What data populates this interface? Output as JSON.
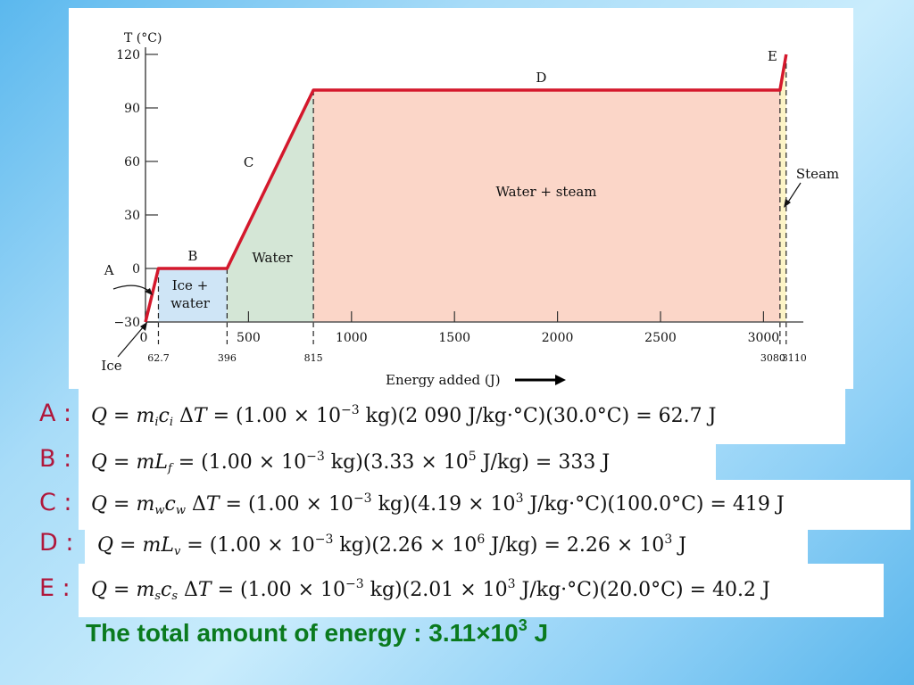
{
  "colors": {
    "curve": "#d4182c",
    "region_ice_water": "#cfe5f6",
    "region_water": "#d4e6d6",
    "region_water_steam": "#fbd6c8",
    "region_steam": "#fcf4c6",
    "equation_labels": "#b0173b",
    "total_text": "#0a7a1e"
  },
  "chart_data": {
    "type": "line",
    "ylabel": "T (°C)",
    "xlabel": "Energy added (J)",
    "ylim": [
      -30,
      120
    ],
    "xlim": [
      0,
      3150
    ],
    "y_ticks": [
      -30,
      0,
      30,
      60,
      90,
      120
    ],
    "x_ticks": [
      0,
      500,
      1000,
      1500,
      2000,
      2500,
      3000
    ],
    "series": [
      {
        "x": [
          0,
          62.7,
          396,
          815,
          3080,
          3110
        ],
        "y": [
          -30,
          0,
          0,
          100,
          100,
          120
        ]
      }
    ],
    "segment_labels": [
      {
        "label": "A",
        "x": 31,
        "y": -15
      },
      {
        "label": "B",
        "x": 229,
        "y": 0
      },
      {
        "label": "C",
        "x": 605,
        "y": 50
      },
      {
        "label": "D",
        "x": 1947,
        "y": 100
      },
      {
        "label": "E",
        "x": 3095,
        "y": 110
      }
    ],
    "region_labels": {
      "ice_water": [
        "Ice +",
        "water"
      ],
      "water": "Water",
      "water_steam": "Water + steam",
      "steam": "Steam",
      "ice": "Ice"
    },
    "marker_values": [
      "62.7",
      "396",
      "815",
      "3080",
      "3110"
    ],
    "grid": false
  },
  "equations": [
    {
      "label": "A :",
      "text_parts": [
        "Q = m",
        "i",
        "c",
        "i",
        " ΔT = (1.00 × 10",
        "−3",
        " kg)(2 090 J/kg·°C)(30.0°C) = 62.7 J"
      ]
    },
    {
      "label": "B :",
      "text_parts": [
        "Q = mL",
        "f",
        " = (1.00 × 10",
        "−3",
        " kg)(3.33 × 10",
        "5",
        " J/kg) = 333 J"
      ]
    },
    {
      "label": "C :",
      "text_parts": [
        "Q = m",
        "w",
        "c",
        "w",
        " ΔT = (1.00 × 10",
        "−3",
        " kg)(4.19 × 10",
        "3",
        " J/kg·°C)(100.0°C) = 419 J"
      ]
    },
    {
      "label": "D :",
      "text_parts": [
        "Q = mL",
        "v",
        " = (1.00 × 10",
        "−3",
        " kg)(2.26 × 10",
        "6",
        " J/kg) = 2.26 × 10",
        "3",
        " J"
      ]
    },
    {
      "label": "E :",
      "text_parts": [
        "Q = m",
        "s",
        "c",
        "s",
        " ΔT = (1.00 × 10",
        "−3",
        " kg)(2.01 × 10",
        "3",
        " J/kg·°C)(20.0°C) = 40.2 J"
      ]
    }
  ],
  "total": {
    "label": "The total amount of energy :",
    "value": "3.11×10",
    "exponent": "3",
    "unit": "J"
  }
}
